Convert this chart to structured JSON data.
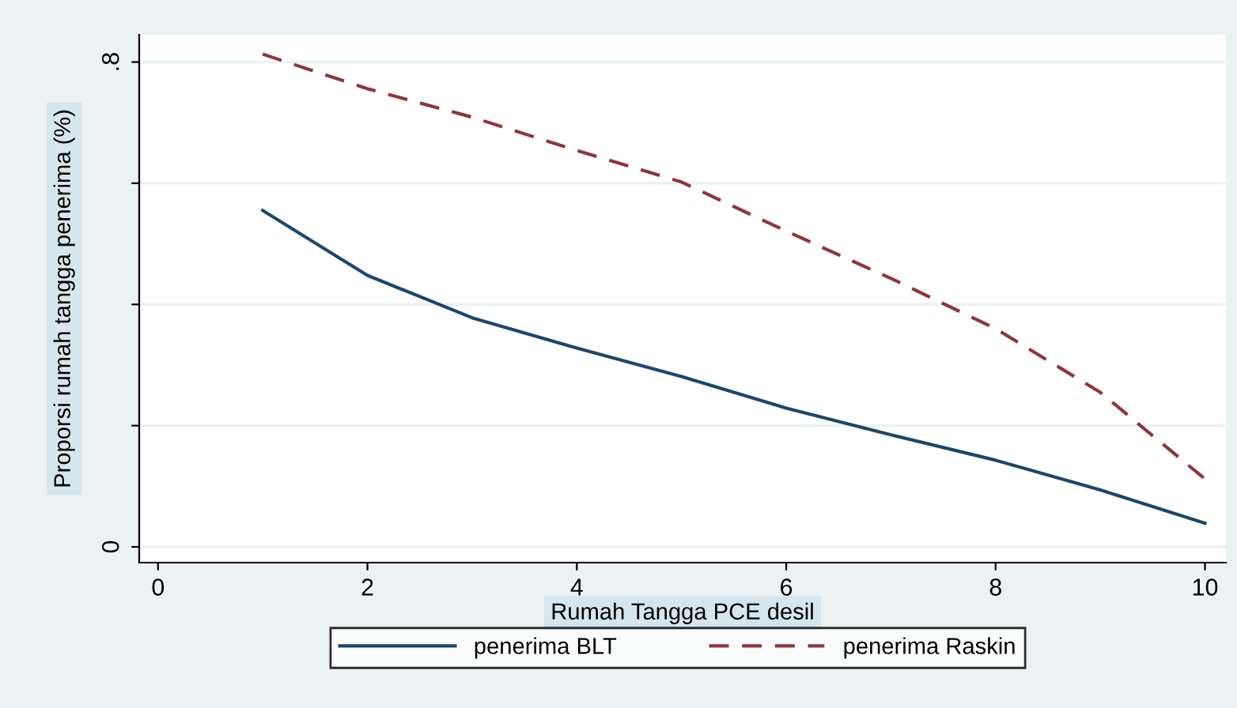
{
  "chart_data": {
    "type": "line",
    "xlabel": "Rumah Tangga PCE desil",
    "ylabel": "Proporsi rumah tangga penerima (%)",
    "x": [
      1,
      2,
      3,
      4,
      5,
      6,
      7,
      8,
      9,
      10
    ],
    "series": [
      {
        "name": "penerima BLT",
        "color": "#1a476f",
        "line_style": "solid",
        "values": [
          0.555,
          0.448,
          0.378,
          0.328,
          0.281,
          0.229,
          0.185,
          0.143,
          0.094,
          0.039
        ]
      },
      {
        "name": "penerima Raskin",
        "color": "#90353b",
        "line_style": "dashed",
        "values": [
          0.813,
          0.756,
          0.709,
          0.654,
          0.602,
          0.521,
          0.443,
          0.36,
          0.255,
          0.112
        ]
      }
    ],
    "xlim": [
      -0.18,
      10.2
    ],
    "xticks": [
      0,
      2,
      4,
      6,
      8,
      10
    ],
    "ylim": [
      -0.026,
      0.845
    ],
    "yticks": [
      {
        "value": 0,
        "label": "0"
      },
      {
        "value": 0.2,
        "label": null
      },
      {
        "value": 0.4,
        "label": null
      },
      {
        "value": 0.6,
        "label": null
      },
      {
        "value": 0.8,
        "label": ".8"
      }
    ],
    "grid": "y",
    "legend": "bottom",
    "marker": "none"
  }
}
